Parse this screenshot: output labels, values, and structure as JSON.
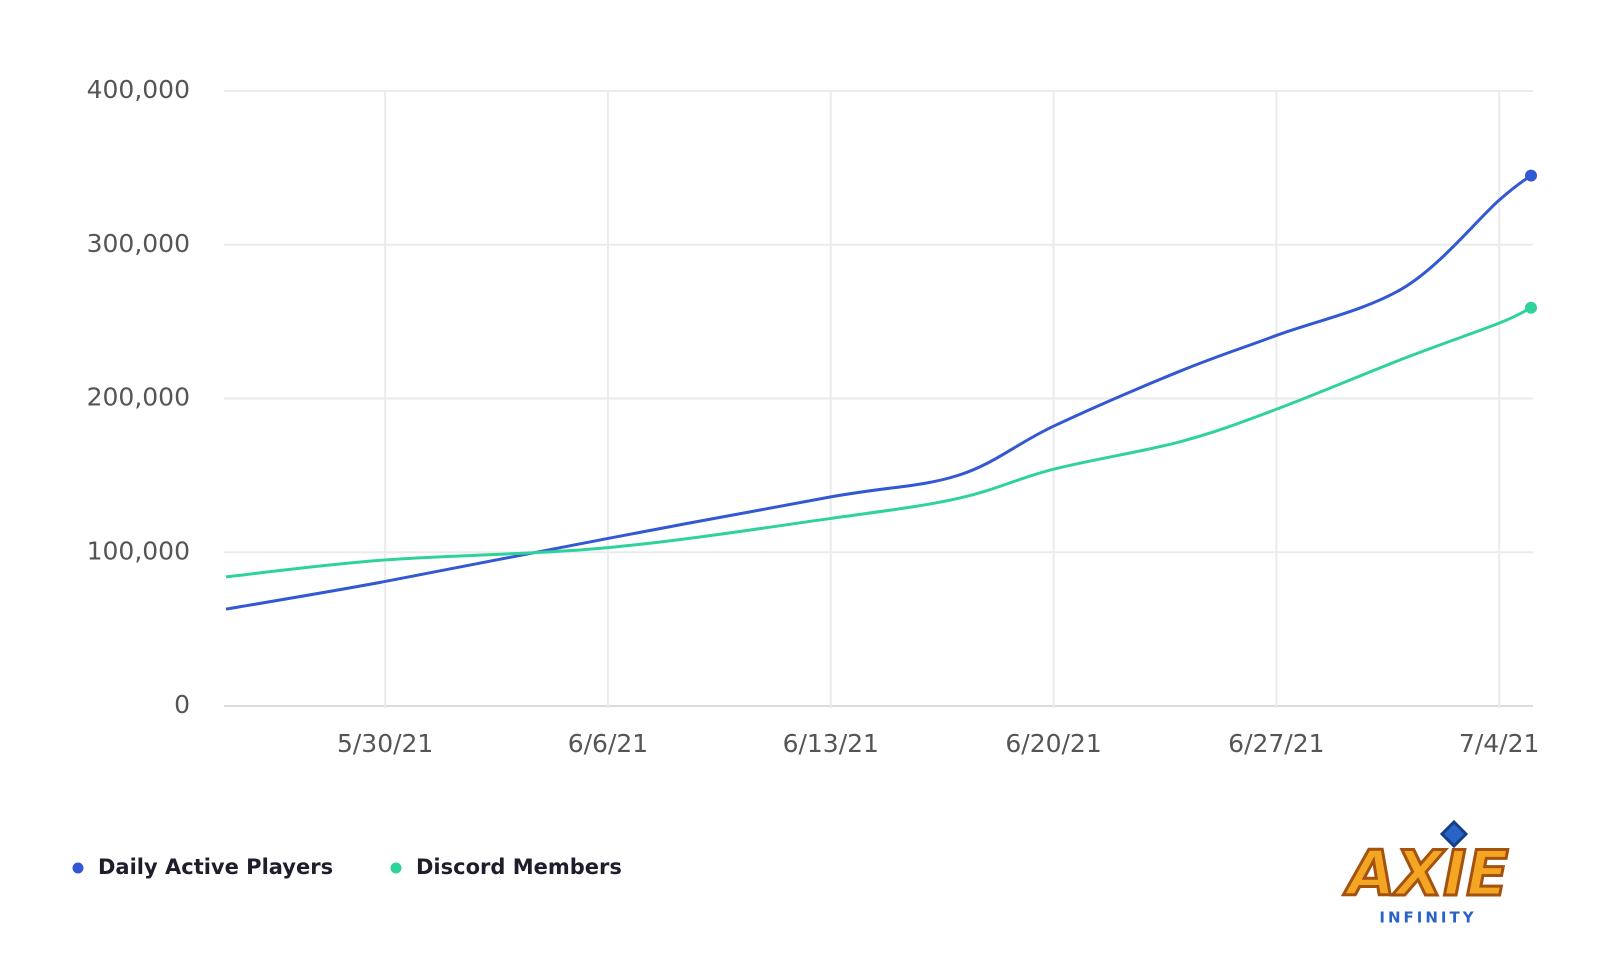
{
  "chart_data": {
    "type": "line",
    "x": [
      "5/25/21",
      "5/30/21",
      "6/6/21",
      "6/13/21",
      "6/17/21",
      "6/20/21",
      "6/24/21",
      "6/27/21",
      "7/1/21",
      "7/4/21",
      "7/5/21"
    ],
    "series": [
      {
        "name": "Daily Active Players",
        "color": "#3358d4",
        "values": [
          63000,
          81000,
          109000,
          136000,
          150000,
          182000,
          218000,
          241000,
          272000,
          329000,
          345000
        ]
      },
      {
        "name": "Discord Members",
        "color": "#2fd39a",
        "values": [
          84000,
          95000,
          103000,
          122000,
          135000,
          154000,
          172000,
          193000,
          226000,
          249000,
          259000
        ]
      }
    ],
    "xlim": [
      "5/25/21",
      "7/5/21"
    ],
    "xticks": [
      "5/30/21",
      "6/6/21",
      "6/13/21",
      "6/20/21",
      "6/27/21",
      "7/4/21"
    ],
    "ylim": [
      0,
      400000
    ],
    "yticks": [
      0,
      {
        "value": 100000,
        "label": "100,000"
      },
      {
        "value": 200000,
        "label": "200,000"
      },
      {
        "value": 300000,
        "label": "300,000"
      },
      {
        "value": 400000,
        "label": "400,000"
      }
    ],
    "grid": true,
    "legend": "bottom-left"
  },
  "logo": {
    "name": "AXIE",
    "tagline": "INFINITY"
  }
}
